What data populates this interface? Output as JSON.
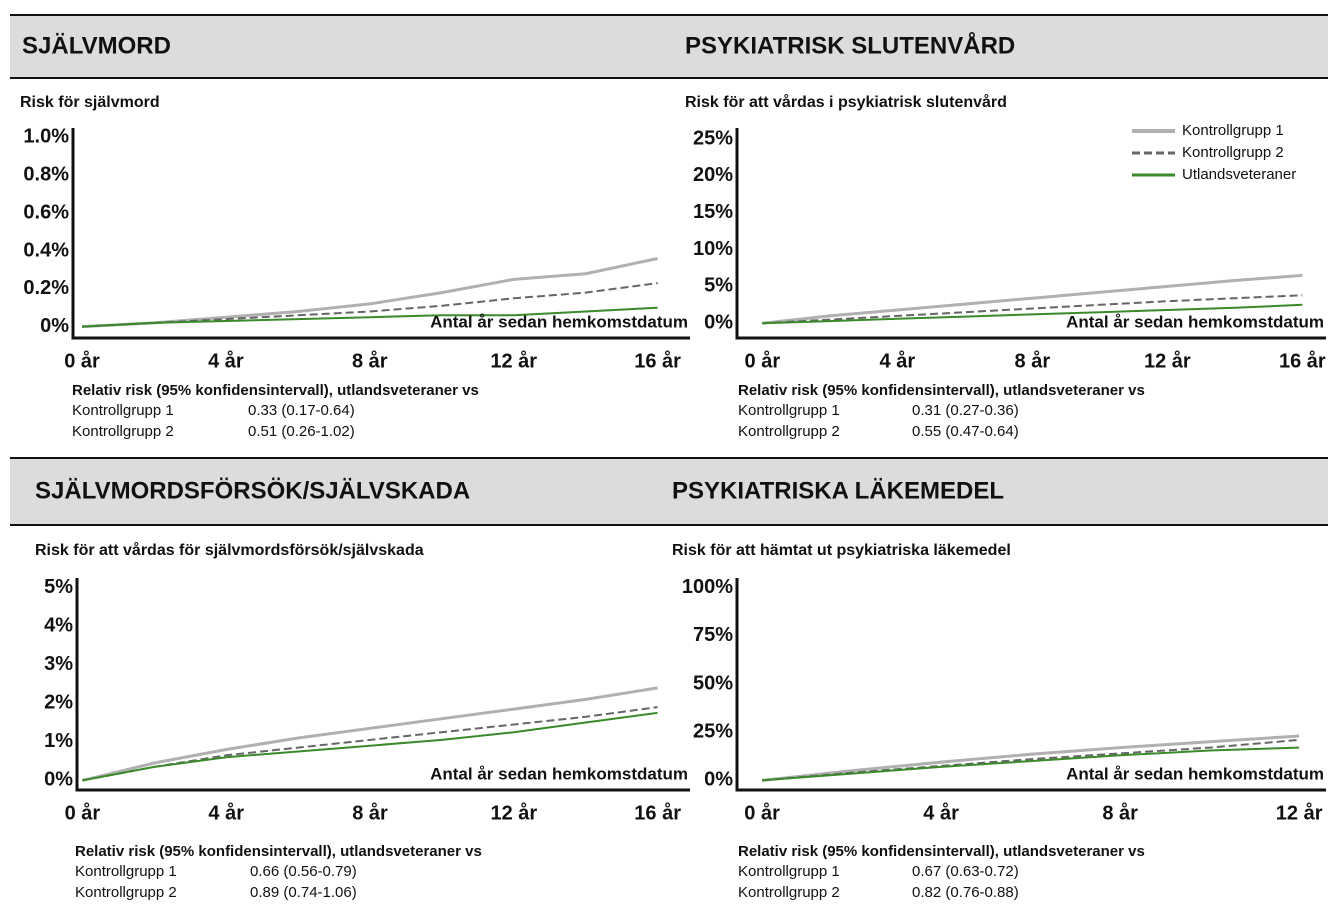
{
  "chart_data": [
    {
      "type": "line",
      "title": "SJÄLVMORD",
      "subtitle": "Risk för självmord",
      "x_label": "Antal år sedan hemkomstdatum",
      "x": [
        0,
        2,
        4,
        6,
        8,
        10,
        12,
        14,
        16
      ],
      "xlim": [
        -0.25,
        16.9
      ],
      "xticks": [
        {
          "value": 0,
          "label": "0 år"
        },
        {
          "value": 4,
          "label": "4 år"
        },
        {
          "value": 8,
          "label": "8 år"
        },
        {
          "value": 12,
          "label": "12 år"
        },
        {
          "value": 16,
          "label": "16 år"
        }
      ],
      "ylim": [
        -0.06,
        1.05
      ],
      "yticks": [
        {
          "value": 0,
          "label": "0%"
        },
        {
          "value": 0.2,
          "label": "0.2%"
        },
        {
          "value": 0.4,
          "label": "0.4%"
        },
        {
          "value": 0.6,
          "label": "0.6%"
        },
        {
          "value": 0.8,
          "label": "0.8%"
        },
        {
          "value": 1.0,
          "label": "1.0%"
        }
      ],
      "series": [
        {
          "color": "#b0b0b0",
          "dash": "none",
          "values": [
            0,
            0.02,
            0.05,
            0.08,
            0.12,
            0.18,
            0.25,
            0.28,
            0.36
          ]
        },
        {
          "color": "#666666",
          "dash": "8,4",
          "values": [
            0,
            0.02,
            0.04,
            0.06,
            0.08,
            0.11,
            0.15,
            0.18,
            0.23
          ]
        },
        {
          "color": "#3a8a2a",
          "dash": "none",
          "values": [
            0,
            0.02,
            0.03,
            0.04,
            0.05,
            0.06,
            0.06,
            0.08,
            0.1
          ]
        }
      ],
      "footnote": {
        "heading": "Relativ risk (95% konfidensintervall), utlandsveteraner vs",
        "rows": [
          [
            "Kontrollgrupp 1",
            "0.33 (0.17-0.64)"
          ],
          [
            "Kontrollgrupp 2",
            "0.51 (0.26-1.02)"
          ]
        ]
      }
    },
    {
      "type": "line",
      "title": "PSYKIATRISK SLUTENVÅRD",
      "subtitle": "Risk för att vårdas i psykiatrisk slutenvård",
      "x_label": "Antal år sedan hemkomstdatum",
      "x": [
        0,
        2,
        4,
        6,
        8,
        10,
        12,
        14,
        16
      ],
      "xlim": [
        -0.75,
        16.7
      ],
      "xticks": [
        {
          "value": 0,
          "label": "0 år"
        },
        {
          "value": 4,
          "label": "4 år"
        },
        {
          "value": 8,
          "label": "8 år"
        },
        {
          "value": 12,
          "label": "12 år"
        },
        {
          "value": 16,
          "label": "16 år"
        }
      ],
      "ylim": [
        -2,
        26.5
      ],
      "yticks": [
        {
          "value": 0,
          "label": "0%"
        },
        {
          "value": 5,
          "label": "5%"
        },
        {
          "value": 10,
          "label": "10%"
        },
        {
          "value": 15,
          "label": "15%"
        },
        {
          "value": 20,
          "label": "20%"
        },
        {
          "value": 25,
          "label": "25%"
        }
      ],
      "legend": "upper right",
      "series": [
        {
          "name": "Kontrollgrupp 1",
          "color": "#b0b0b0",
          "dash": "none",
          "values": [
            0,
            1,
            1.8,
            2.6,
            3.4,
            4.2,
            5,
            5.8,
            6.5
          ]
        },
        {
          "name": "Kontrollgrupp 2",
          "color": "#666666",
          "dash": "8,4",
          "values": [
            0,
            0.5,
            1,
            1.5,
            2,
            2.5,
            3,
            3.4,
            3.8
          ]
        },
        {
          "name": "Utlandsveteraner",
          "color": "#3a8a2a",
          "dash": "none",
          "values": [
            0,
            0.3,
            0.6,
            0.9,
            1.2,
            1.5,
            1.8,
            2.1,
            2.5
          ]
        }
      ],
      "footnote": {
        "heading": "Relativ risk (95% konfidensintervall), utlandsveteraner vs",
        "rows": [
          [
            "Kontrollgrupp 1",
            "0.31 (0.27-0.36)"
          ],
          [
            "Kontrollgrupp 2",
            "0.55 (0.47-0.64)"
          ]
        ]
      }
    },
    {
      "type": "line",
      "title": "SJÄLVMORDSFÖRSÖK/SJÄLVSKADA",
      "subtitle": "Risk för att vårdas för självmordsförsök/självskada",
      "x_label": "Antal år sedan hemkomstdatum",
      "x": [
        0,
        2,
        4,
        6,
        8,
        10,
        12,
        14,
        16
      ],
      "xlim": [
        -0.15,
        16.9
      ],
      "xticks": [
        {
          "value": 0,
          "label": "0 år"
        },
        {
          "value": 4,
          "label": "4 år"
        },
        {
          "value": 8,
          "label": "8 år"
        },
        {
          "value": 12,
          "label": "12 år"
        },
        {
          "value": 16,
          "label": "16 år"
        }
      ],
      "ylim": [
        -0.25,
        5.25
      ],
      "yticks": [
        {
          "value": 0,
          "label": "0%"
        },
        {
          "value": 1,
          "label": "1%"
        },
        {
          "value": 2,
          "label": "2%"
        },
        {
          "value": 3,
          "label": "3%"
        },
        {
          "value": 4,
          "label": "4%"
        },
        {
          "value": 5,
          "label": "5%"
        }
      ],
      "series": [
        {
          "color": "#b0b0b0",
          "dash": "none",
          "values": [
            0,
            0.45,
            0.8,
            1.1,
            1.35,
            1.6,
            1.85,
            2.1,
            2.4
          ]
        },
        {
          "color": "#666666",
          "dash": "8,4",
          "values": [
            0,
            0.35,
            0.65,
            0.85,
            1.05,
            1.25,
            1.45,
            1.65,
            1.9
          ]
        },
        {
          "color": "#3a8a2a",
          "dash": "none",
          "values": [
            0,
            0.35,
            0.6,
            0.75,
            0.9,
            1.05,
            1.25,
            1.5,
            1.75
          ]
        }
      ],
      "footnote": {
        "heading": "Relativ risk (95% konfidensintervall), utlandsveteraner vs",
        "rows": [
          [
            "Kontrollgrupp 1",
            "0.66 (0.56-0.79)"
          ],
          [
            "Kontrollgrupp 2",
            "0.89 (0.74-1.06)"
          ]
        ]
      }
    },
    {
      "type": "line",
      "title": "PSYKIATRISKA LÄKEMEDEL",
      "subtitle": "Risk för att hämtat ut psykiatriska läkemedel",
      "x_label": "Antal år sedan hemkomstdatum",
      "x": [
        0,
        2,
        4,
        6,
        8,
        10,
        12
      ],
      "xlim": [
        -0.56,
        12.6
      ],
      "xticks": [
        {
          "value": 0,
          "label": "0 år"
        },
        {
          "value": 4,
          "label": "4 år"
        },
        {
          "value": 8,
          "label": "8 år"
        },
        {
          "value": 12,
          "label": "12 år"
        }
      ],
      "ylim": [
        -5,
        105
      ],
      "yticks": [
        {
          "value": 0,
          "label": "0%"
        },
        {
          "value": 25,
          "label": "25%"
        },
        {
          "value": 50,
          "label": "50%"
        },
        {
          "value": 75,
          "label": "75%"
        },
        {
          "value": 100,
          "label": "100%"
        }
      ],
      "series": [
        {
          "color": "#b0b0b0",
          "dash": "none",
          "values": [
            0,
            5,
            9.5,
            13.5,
            17,
            20,
            23
          ]
        },
        {
          "color": "#666666",
          "dash": "8,4",
          "values": [
            0,
            4,
            7.5,
            11,
            14,
            17,
            21
          ]
        },
        {
          "color": "#3a8a2a",
          "dash": "none",
          "values": [
            0,
            3.5,
            7,
            10,
            13,
            15.5,
            17
          ]
        }
      ],
      "footnote": {
        "heading": "Relativ risk (95% konfidensintervall), utlandsveteraner vs",
        "rows": [
          [
            "Kontrollgrupp 1",
            "0.67 (0.63-0.72)"
          ],
          [
            "Kontrollgrupp 2",
            "0.82 (0.76-0.88)"
          ]
        ]
      }
    }
  ]
}
